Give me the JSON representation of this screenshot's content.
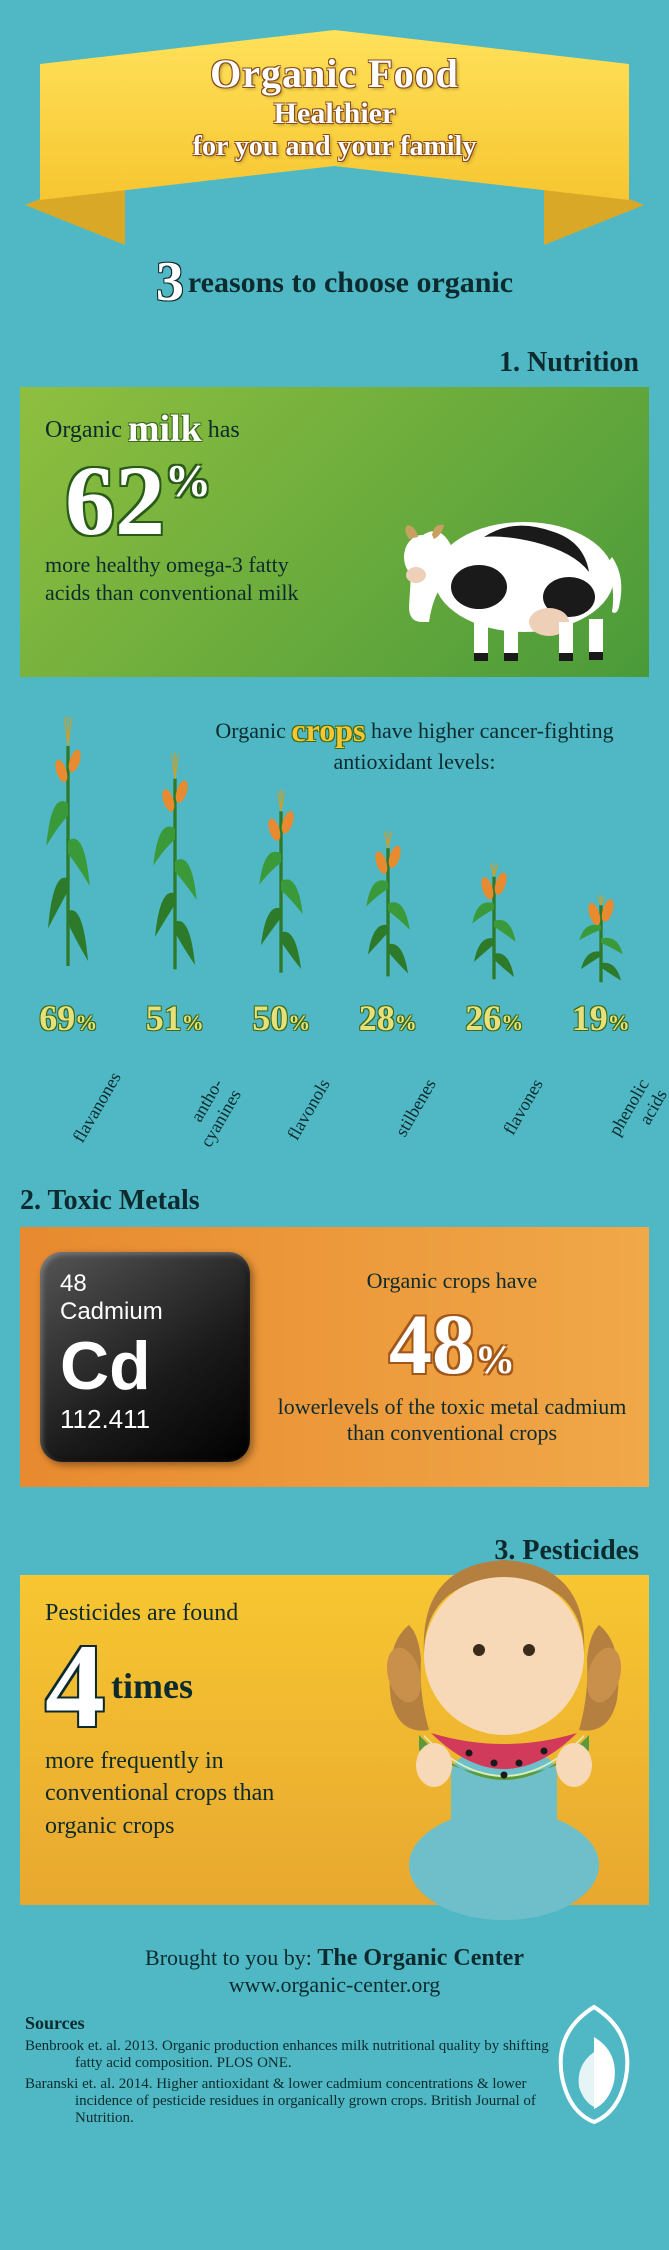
{
  "banner": {
    "title1": "Organic Food",
    "title2": "Healthier",
    "title3": "for you and your family",
    "bg_gradient": [
      "#ffe15a",
      "#f7c631"
    ],
    "outline": "#8a4a1a"
  },
  "subhead": {
    "big": "3",
    "text": "reasons to choose organic"
  },
  "sections": {
    "nutrition": {
      "title": "1. Nutrition"
    },
    "toxic": {
      "title": "2. Toxic Metals"
    },
    "pesticides": {
      "title": "3. Pesticides"
    }
  },
  "milk": {
    "pre": "Organic",
    "word": "milk",
    "post": "has",
    "pct": "62",
    "pct_mark": "%",
    "desc": "more healthy omega-3 fatty acids than conventional milk",
    "bg_gradient": [
      "#8fbf3f",
      "#4a9a3a"
    ],
    "text_color": "#0d2b2e",
    "pct_color": "#ffffff",
    "pct_outline": "#285a18"
  },
  "crops_intro": {
    "pre": "Organic",
    "word": "crops",
    "post": "have higher cancer-fighting antioxidant levels:"
  },
  "crops": [
    {
      "label": "flavanones",
      "pct": "69",
      "plant_height": 300
    },
    {
      "label": "antho-\ncyanines",
      "pct": "51",
      "plant_height": 260
    },
    {
      "label": "flavonols",
      "pct": "50",
      "plant_height": 220
    },
    {
      "label": "stilbenes",
      "pct": "28",
      "plant_height": 175
    },
    {
      "label": "flavones",
      "pct": "26",
      "plant_height": 140
    },
    {
      "label": "phenolic\nacids",
      "pct": "19",
      "plant_height": 105
    }
  ],
  "crop_style": {
    "pct_color": "#e8e07a",
    "pct_outline": "#3a6a1a",
    "stem_color": "#2d7a2a",
    "corn_color": "#e88a2f"
  },
  "toxic": {
    "element": {
      "num": "48",
      "name": "Cadmium",
      "sym": "Cd",
      "mass": "112.411"
    },
    "text_pre": "Organic crops have",
    "pct": "48",
    "pct_mark": "%",
    "text_post": "lowerlevels of the toxic metal cadmium than conventional crops",
    "bg_gradient": [
      "#e88a2f",
      "#f0a848"
    ],
    "tile_gradient": [
      "#555555",
      "#1a1a1a",
      "#000000"
    ],
    "pct_outline": "#a0581a"
  },
  "pesticides": {
    "line1": "Pesticides are found",
    "big": "4",
    "times": "times",
    "desc": "more frequently in conventional crops than organic crops",
    "bg_gradient": [
      "#f7c631",
      "#e8a82f"
    ]
  },
  "footer": {
    "brought_pre": "Brought to you by: ",
    "brought_name": "The Organic Center",
    "url": "www.organic-center.org",
    "sources_h": "Sources",
    "sources": [
      "Benbrook et. al. 2013.  Organic production enhances milk nutritional quality by shifting fatty acid composition.  PLOS ONE.",
      "Baranski et. al. 2014.  Higher antioxidant & lower cadmium concentrations & lower incidence of pesticide residues in organically grown crops.  British Journal of Nutrition."
    ]
  },
  "page_bg": "#4fb8c4"
}
